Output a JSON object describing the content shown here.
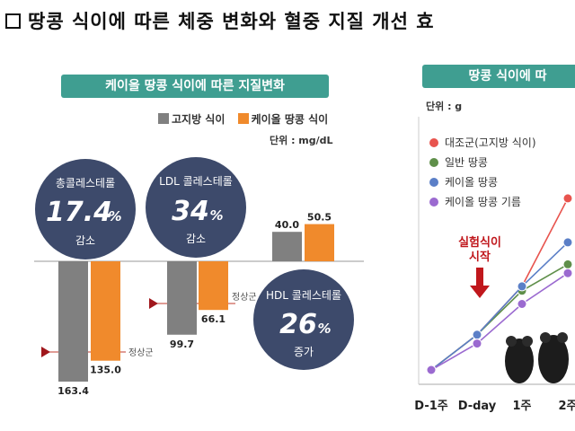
{
  "headline": "땅콩 식이에 따른 체중 변화와 혈중 지질 개선 효",
  "left_panel": {
    "title": "케이올 땅콩 식이에 따른 지질변화",
    "legend": [
      {
        "label": "고지방 식이",
        "color": "#808080"
      },
      {
        "label": "케이올 땅콩 식이",
        "color": "#f08a2c"
      }
    ],
    "unit": "단위 : mg/dL",
    "normal_label": "정상군",
    "bubbles": [
      {
        "title": "총콜레스테롤",
        "value": "17.4",
        "suffix": "%",
        "note": "감소"
      },
      {
        "title": "LDL 콜레스테롤",
        "value": "34",
        "suffix": "%",
        "note": "감소"
      },
      {
        "title": "HDL 콜레스테롤",
        "value": "26",
        "suffix": "%",
        "note": "증가"
      }
    ]
  },
  "right_panel": {
    "title": "땅콩 식이에 따",
    "unit": "단위 : g",
    "start_annotation": [
      "실험식이",
      "시작"
    ],
    "legend": [
      {
        "label": "대조군(고지방 식이)",
        "color": "#e8544e"
      },
      {
        "label": "일반 땅콩",
        "color": "#5f8f4a"
      },
      {
        "label": "케이올 땅콩",
        "color": "#5b7fc7"
      },
      {
        "label": "케이올 땅콩 기름",
        "color": "#9b6ad0"
      }
    ]
  },
  "chart_data": [
    {
      "type": "bar",
      "categories": [
        "총콜레스테롤",
        "LDL 콜레스테롤",
        "HDL 콜레스테롤"
      ],
      "series": [
        {
          "name": "고지방 식이",
          "values": [
            163.4,
            99.7,
            40.0
          ]
        },
        {
          "name": "케이올 땅콩 식이",
          "values": [
            135.0,
            66.1,
            50.5
          ]
        }
      ],
      "data_labels": [
        [
          "163.4",
          "99.7",
          "40.0"
        ],
        [
          "135.0",
          "66.1",
          "50.5"
        ]
      ],
      "unit": "mg/dL"
    },
    {
      "type": "line",
      "x": [
        "D-1주",
        "D-day",
        "1주",
        "2주"
      ],
      "series": [
        {
          "name": "대조군(고지방 식이)",
          "values": [
            0.0,
            0.8,
            1.9,
            3.9
          ]
        },
        {
          "name": "일반 땅콩",
          "values": [
            0.0,
            0.8,
            1.8,
            2.4
          ]
        },
        {
          "name": "케이올 땅콩",
          "values": [
            0.0,
            0.8,
            1.9,
            2.9
          ]
        },
        {
          "name": "케이올 땅콩 기름",
          "values": [
            0.0,
            0.6,
            1.5,
            2.2
          ]
        }
      ],
      "unit": "g"
    }
  ]
}
